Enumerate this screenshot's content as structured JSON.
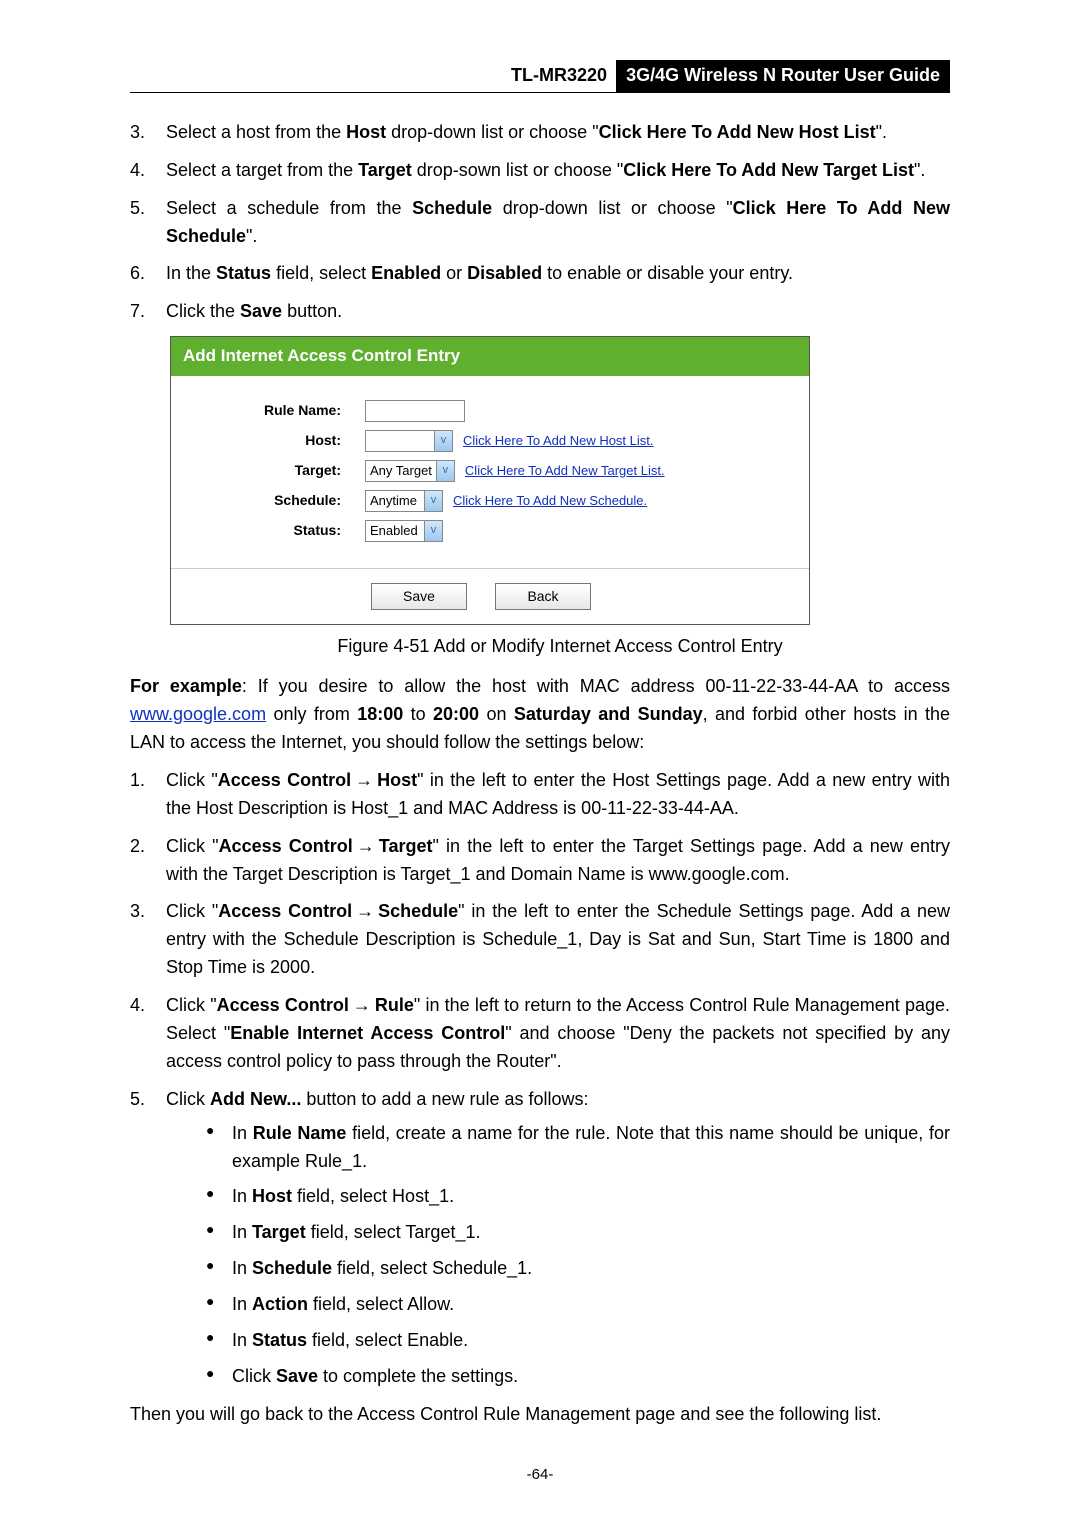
{
  "header": {
    "model": "TL-MR3220",
    "title": "3G/4G Wireless N Router User Guide"
  },
  "top_steps": [
    {
      "num": "3.",
      "pre": "Select a host from the ",
      "b1": "Host",
      "mid1": " drop-down list or choose \"",
      "b2": "Click Here To Add New Host List",
      "post": "\"."
    },
    {
      "num": "4.",
      "pre": "Select a target from the ",
      "b1": "Target",
      "mid1": " drop-sown list or choose \"",
      "b2": "Click Here To Add New Target List",
      "post": "\"."
    },
    {
      "num": "5.",
      "pre": "Select a schedule from the ",
      "b1": "Schedule",
      "mid1": " drop-down list or choose \"",
      "b2": "Click Here To Add New Schedule",
      "post": "\"."
    },
    {
      "num": "6.",
      "pre": "In the ",
      "b1": "Status",
      "mid1": " field, select ",
      "b2": "Enabled",
      "mid2": " or ",
      "b3": "Disabled",
      "post": " to enable or disable your entry."
    },
    {
      "num": "7.",
      "pre": "Click the ",
      "b1": "Save",
      "post": " button."
    }
  ],
  "figure": {
    "title": "Add Internet Access Control Entry",
    "rows": {
      "rule_name": "Rule Name:",
      "host": "Host:",
      "target": "Target:",
      "schedule": "Schedule:",
      "status": "Status:"
    },
    "selects": {
      "host": "",
      "target": "Any Target",
      "schedule": "Anytime",
      "status": "Enabled"
    },
    "links": {
      "host": "Click Here To Add New Host List.",
      "target": "Click Here To Add New Target List.",
      "schedule": "Click Here To Add New Schedule."
    },
    "buttons": {
      "save": "Save",
      "back": "Back"
    },
    "caption": "Figure 4-51    Add or Modify Internet Access Control Entry"
  },
  "example": {
    "lead_bold": "For example",
    "lead_rest": ": If you desire to allow the host with MAC address 00-11-22-33-44-AA to access ",
    "link": "www.google.com",
    "after_link1": " only from ",
    "time1": "18:00",
    "to": " to ",
    "time2": "20:00",
    "on": " on ",
    "days": "Saturday and Sunday",
    "tail": ", and forbid other hosts in the LAN to access the Internet, you should follow the settings below:"
  },
  "steps2": {
    "s1": {
      "num": "1.",
      "t0": "Click \"",
      "b1": "Access Control",
      "arrow": "→",
      "b2": "Host",
      "t1": "\" in the left to enter the Host Settings page. Add a new entry with the Host Description is Host_1 and MAC Address is 00-11-22-33-44-AA."
    },
    "s2": {
      "num": "2.",
      "t0": "Click \"",
      "b1": "Access Control",
      "arrow": "→",
      "b2": "Target",
      "t1": "\" in the left to enter the Target Settings page. Add a new entry with the Target Description is Target_1 and Domain Name is www.google.com."
    },
    "s3": {
      "num": "3.",
      "t0": "Click \"",
      "b1": "Access Control",
      "arrow": "→",
      "b2": "Schedule",
      "t1": "\" in the left to enter the Schedule Settings page. Add a new entry with the Schedule Description is Schedule_1, Day is Sat and Sun, Start Time is 1800 and Stop Time is 2000."
    },
    "s4": {
      "num": "4.",
      "t0": "Click \"",
      "b1": "Access Control",
      "arrow": "→",
      "b2": "Rule",
      "t1": "\" in the left to return to the Access Control Rule Management page. Select \"",
      "b3": "Enable Internet Access Control",
      "t2": "\" and choose \"Deny the packets not specified by any access control policy to pass through the Router\"."
    },
    "s5": {
      "num": "5.",
      "t0": "Click ",
      "b1": "Add New...",
      "t1": " button to add a new rule as follows:"
    }
  },
  "bullets": [
    {
      "pre": "In ",
      "b": "Rule Name",
      "post": " field, create a name for the rule. Note that this name should be unique, for example Rule_1."
    },
    {
      "pre": "In ",
      "b": "Host",
      "post": " field, select Host_1."
    },
    {
      "pre": "In ",
      "b": "Target",
      "post": " field, select Target_1."
    },
    {
      "pre": "In ",
      "b": "Schedule",
      "post": " field, select Schedule_1."
    },
    {
      "pre": "In ",
      "b": "Action",
      "post": " field, select Allow."
    },
    {
      "pre": "In ",
      "b": "Status",
      "post": " field, select Enable."
    },
    {
      "pre": "Click ",
      "b": "Save",
      "post": " to complete the settings."
    }
  ],
  "closing": "Then you will go back to the Access Control Rule Management page and see the following list.",
  "page_number": "-64-"
}
